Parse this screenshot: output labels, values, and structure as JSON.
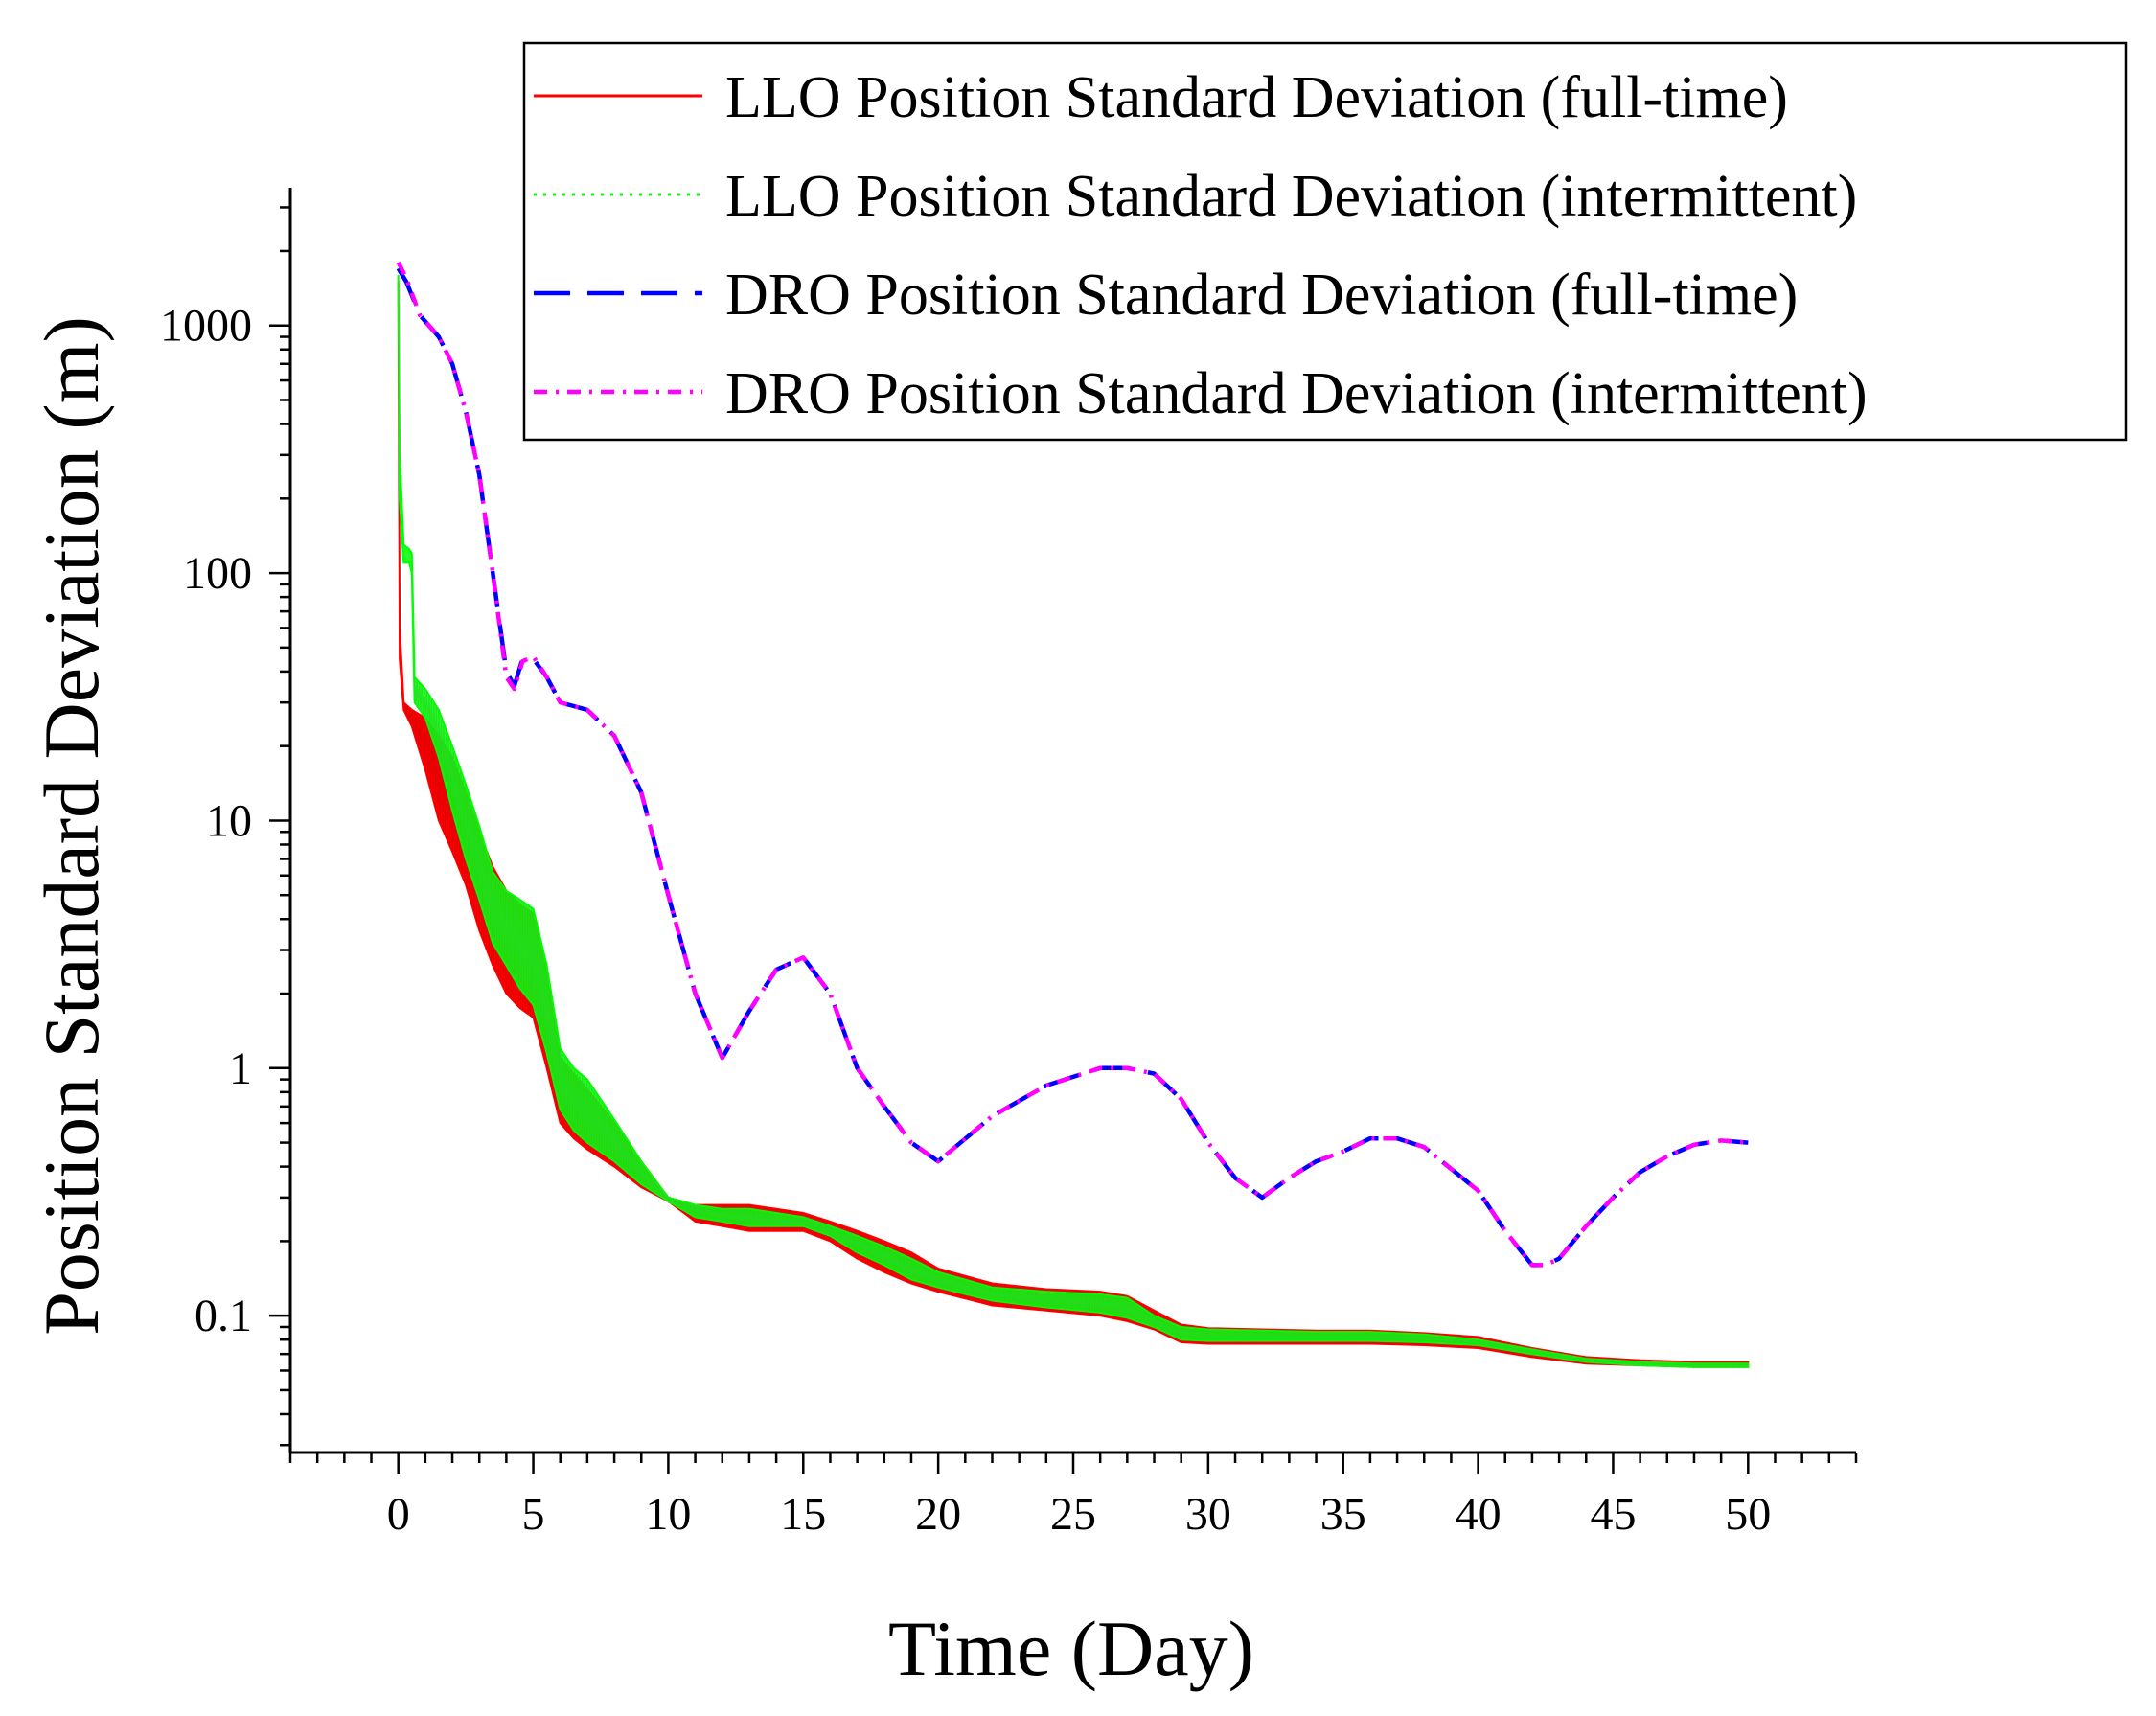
{
  "chart_data": {
    "type": "line",
    "title": "",
    "xlabel": "Time (Day)",
    "ylabel": "Position Standard Deviation (m)",
    "xscale": "linear",
    "yscale": "log",
    "xlim": [
      -4,
      54
    ],
    "ylim": [
      0.028,
      3600
    ],
    "x_ticks": [
      0,
      5,
      10,
      15,
      20,
      25,
      30,
      35,
      40,
      45,
      50
    ],
    "x_tick_labels": [
      "0",
      "5",
      "10",
      "15",
      "20",
      "25",
      "30",
      "35",
      "40",
      "45",
      "50"
    ],
    "y_ticks": [
      0.1,
      1,
      10,
      100,
      1000
    ],
    "y_tick_labels": [
      "0.1",
      "1",
      "10",
      "100",
      "1000"
    ],
    "legend_position": "top-right",
    "series": [
      {
        "name": "LLO Position Standard Deviation (full-time)",
        "color": "#ff0000",
        "style": "solid",
        "band": true,
        "x": [
          0,
          0.05,
          0.2,
          0.5,
          1,
          1.5,
          2,
          2.5,
          3,
          3.5,
          4,
          4.5,
          5,
          5.5,
          6,
          6.5,
          7,
          8,
          9,
          10,
          11,
          12,
          13,
          14,
          15,
          16,
          17,
          18,
          19,
          20,
          22,
          24,
          26,
          27,
          28,
          29,
          30,
          32,
          34,
          36,
          38,
          40,
          42,
          44,
          46,
          48,
          50
        ],
        "upper": [
          1500,
          60,
          30,
          28,
          26,
          22,
          18,
          13,
          9,
          6.5,
          5.2,
          4.6,
          4.2,
          2.4,
          1.1,
          0.95,
          0.82,
          0.6,
          0.42,
          0.3,
          0.28,
          0.28,
          0.28,
          0.27,
          0.26,
          0.24,
          0.22,
          0.2,
          0.18,
          0.155,
          0.135,
          0.128,
          0.125,
          0.12,
          0.105,
          0.092,
          0.089,
          0.088,
          0.087,
          0.087,
          0.085,
          0.082,
          0.074,
          0.068,
          0.066,
          0.065,
          0.065
        ],
        "lower": [
          1500,
          45,
          28,
          24,
          16,
          10,
          7.5,
          5.5,
          3.6,
          2.6,
          2.0,
          1.75,
          1.6,
          1.0,
          0.6,
          0.52,
          0.47,
          0.4,
          0.33,
          0.29,
          0.24,
          0.23,
          0.22,
          0.22,
          0.22,
          0.2,
          0.17,
          0.15,
          0.135,
          0.125,
          0.11,
          0.105,
          0.1,
          0.095,
          0.088,
          0.078,
          0.077,
          0.077,
          0.077,
          0.077,
          0.076,
          0.074,
          0.068,
          0.064,
          0.063,
          0.062,
          0.062
        ]
      },
      {
        "name": "LLO Position Standard Deviation (intermittent)",
        "color": "#00ff00",
        "style": "dotted",
        "band": true,
        "x": [
          0,
          0.05,
          0.2,
          0.4,
          0.5,
          0.6,
          1,
          1.5,
          2,
          2.5,
          3,
          3.5,
          4,
          4.5,
          5,
          5.5,
          6,
          6.5,
          7,
          8,
          9,
          10,
          11,
          12,
          13,
          14,
          15,
          16,
          17,
          18,
          19,
          20,
          22,
          24,
          26,
          27,
          28,
          29,
          30,
          32,
          34,
          36,
          38,
          40,
          42,
          44,
          46,
          48,
          50
        ],
        "upper": [
          1600,
          300,
          130,
          125,
          120,
          38,
          34,
          28,
          20,
          14,
          9.5,
          6.2,
          5.2,
          4.8,
          4.4,
          2.6,
          1.2,
          1.0,
          0.9,
          0.62,
          0.42,
          0.3,
          0.28,
          0.27,
          0.27,
          0.26,
          0.25,
          0.23,
          0.21,
          0.19,
          0.17,
          0.15,
          0.13,
          0.125,
          0.122,
          0.118,
          0.1,
          0.09,
          0.088,
          0.087,
          0.086,
          0.086,
          0.084,
          0.08,
          0.073,
          0.067,
          0.065,
          0.064,
          0.064
        ],
        "lower": [
          1600,
          200,
          110,
          110,
          100,
          30,
          26,
          18,
          11,
          7,
          4.8,
          3.2,
          2.6,
          2.1,
          1.8,
          1.15,
          0.68,
          0.56,
          0.5,
          0.42,
          0.34,
          0.29,
          0.25,
          0.24,
          0.23,
          0.23,
          0.23,
          0.21,
          0.18,
          0.16,
          0.14,
          0.13,
          0.115,
          0.108,
          0.103,
          0.098,
          0.09,
          0.08,
          0.079,
          0.079,
          0.079,
          0.079,
          0.078,
          0.076,
          0.07,
          0.065,
          0.063,
          0.062,
          0.062
        ]
      },
      {
        "name": "DRO Position Standard Deviation (full-time)",
        "color": "#0000ff",
        "style": "dashed",
        "x": [
          0,
          0.3,
          0.8,
          1.5,
          2,
          2.5,
          3,
          3.5,
          4,
          4.3,
          4.6,
          5,
          5.5,
          6,
          6.5,
          7,
          8,
          9,
          10,
          11,
          12,
          13,
          14,
          15,
          16,
          17,
          18,
          19,
          20,
          22,
          24,
          26,
          27,
          28,
          29,
          30,
          31,
          32,
          33,
          34,
          35,
          36,
          37,
          38,
          40,
          41,
          42,
          42.5,
          43,
          44,
          45,
          46,
          47,
          48,
          49,
          50
        ],
        "y": [
          1700,
          1500,
          1100,
          900,
          700,
          450,
          250,
          100,
          40,
          35,
          45,
          45,
          38,
          30,
          29,
          28,
          22,
          13,
          5,
          2.0,
          1.1,
          1.7,
          2.5,
          2.8,
          2.0,
          1.0,
          0.7,
          0.5,
          0.42,
          0.64,
          0.85,
          1.0,
          1.0,
          0.95,
          0.75,
          0.5,
          0.36,
          0.3,
          0.36,
          0.42,
          0.46,
          0.52,
          0.52,
          0.48,
          0.32,
          0.22,
          0.16,
          0.16,
          0.17,
          0.23,
          0.3,
          0.38,
          0.44,
          0.49,
          0.51,
          0.5
        ]
      },
      {
        "name": "DRO Position Standard Deviation (intermittent)",
        "color": "#ff00ff",
        "style": "dashdot",
        "x": [
          0,
          0.3,
          0.8,
          1.5,
          2,
          2.5,
          3,
          3.5,
          4,
          4.3,
          4.6,
          5,
          5.5,
          6,
          6.5,
          7,
          8,
          9,
          10,
          11,
          12,
          13,
          14,
          15,
          16,
          17,
          18,
          19,
          20,
          22,
          24,
          26,
          27,
          28,
          29,
          30,
          31,
          32,
          33,
          34,
          35,
          36,
          37,
          38,
          40,
          41,
          42,
          42.5,
          43,
          44,
          45,
          46,
          47,
          48,
          49,
          50
        ],
        "y": [
          1800,
          1550,
          1100,
          900,
          700,
          450,
          250,
          100,
          38,
          34,
          44,
          46,
          38,
          30,
          29,
          28,
          22,
          13,
          5,
          2.0,
          1.1,
          1.7,
          2.5,
          2.8,
          2.0,
          1.0,
          0.7,
          0.5,
          0.42,
          0.64,
          0.85,
          1.0,
          1.0,
          0.95,
          0.75,
          0.5,
          0.36,
          0.3,
          0.36,
          0.42,
          0.46,
          0.52,
          0.52,
          0.48,
          0.32,
          0.22,
          0.16,
          0.16,
          0.17,
          0.23,
          0.3,
          0.38,
          0.44,
          0.49,
          0.51,
          0.5
        ]
      }
    ]
  }
}
